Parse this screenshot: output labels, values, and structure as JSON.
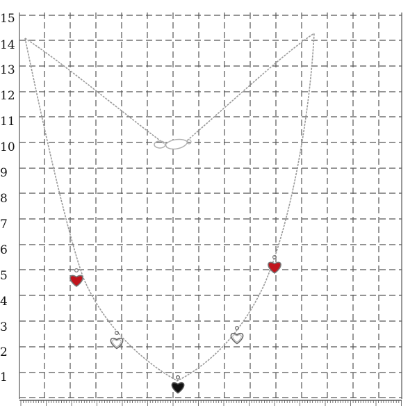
{
  "grid": {
    "line_color": "#555555",
    "y_labels": [
      "15",
      "14",
      "13",
      "12",
      "11",
      "10",
      "9",
      "8",
      "7",
      "6",
      "5",
      "4",
      "3",
      "2",
      "1"
    ]
  },
  "necklace": {
    "chain_color": "#9a9a9a",
    "clasp": {
      "icon": "lobster-clasp-icon",
      "color": "#b0b0b0"
    },
    "charms": [
      {
        "name": "red-heart-charm-left",
        "icon": "heart-icon",
        "fill": "#c0141c",
        "outline": "#777777"
      },
      {
        "name": "open-heart-charm-left",
        "icon": "heart-outline-icon",
        "fill": "#ffffff",
        "outline": "#666666"
      },
      {
        "name": "black-heart-charm-center",
        "icon": "heart-icon",
        "fill": "#111111",
        "outline": "#555555"
      },
      {
        "name": "open-heart-charm-right",
        "icon": "heart-outline-icon",
        "fill": "#ffffff",
        "outline": "#666666"
      },
      {
        "name": "red-heart-charm-right",
        "icon": "heart-icon",
        "fill": "#c0141c",
        "outline": "#777777"
      }
    ]
  }
}
